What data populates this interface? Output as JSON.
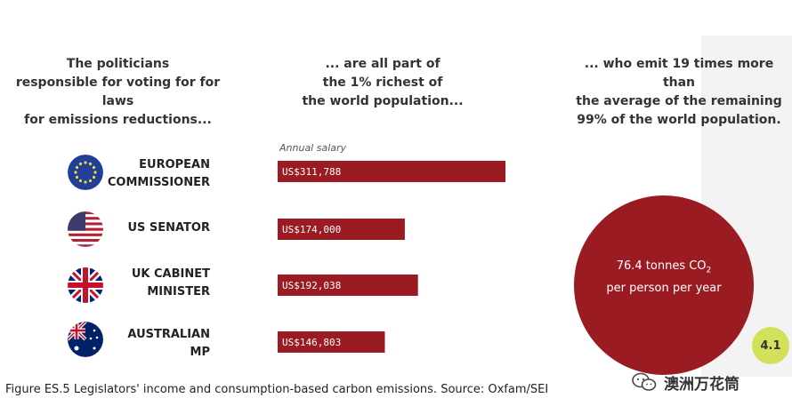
{
  "headings": {
    "col1": [
      "The politicians",
      "responsible for voting for for laws",
      "for emissions reductions..."
    ],
    "col2": [
      "... are all part of",
      "the 1% richest of",
      "the world population..."
    ],
    "col3": [
      "... who emit 19 times more than",
      "the average of the remaining",
      "99% of the world population."
    ]
  },
  "salary_label": "Annual salary",
  "roles": [
    {
      "line1": "EUROPEAN",
      "line2": "COMMISSIONER",
      "flag": "eu-flag-icon"
    },
    {
      "line1": "US SENATOR",
      "line2": "",
      "flag": "us-flag-icon"
    },
    {
      "line1": "UK CABINET",
      "line2": "MINISTER",
      "flag": "uk-flag-icon"
    },
    {
      "line1": "AUSTRALIAN",
      "line2": "MP",
      "flag": "australia-flag-icon"
    }
  ],
  "chart_data": {
    "type": "bar",
    "orientation": "horizontal",
    "categories": [
      "EUROPEAN COMMISSIONER",
      "US SENATOR",
      "UK CABINET MINISTER",
      "AUSTRALIAN MP"
    ],
    "values": [
      311788,
      174000,
      192038,
      146803
    ],
    "value_labels": [
      "US$311,788",
      "US$174,000",
      "US$192,038",
      "US$146,803"
    ],
    "bar_color": "#9b1b22",
    "ylabel": "Annual salary"
  },
  "emissions": {
    "value_text": "76.4 tonnes CO",
    "subscript": "2",
    "line2": "per person per year",
    "color": "#9b1b22"
  },
  "badge": "4.1",
  "caption": "Figure ES.5 Legislators' income and consumption-based carbon emissions. Source: Oxfam/SEI",
  "watermark": "澳洲万花筒"
}
